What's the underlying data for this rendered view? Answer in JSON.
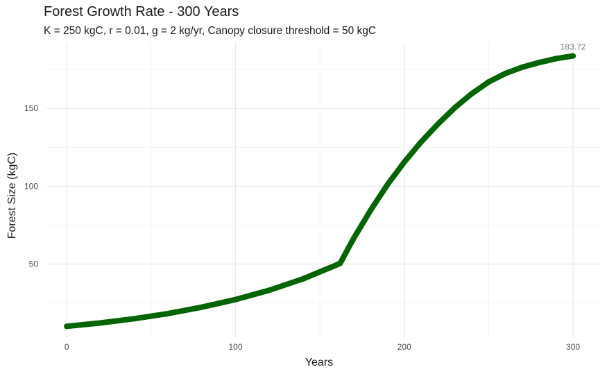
{
  "chart_data": {
    "type": "line",
    "title": "Forest Growth Rate - 300 Years",
    "subtitle": "K = 250 kgC, r = 0.01, g = 2 kg/yr, Canopy closure threshold = 50 kgC",
    "xlabel": "Years",
    "ylabel": "Forest Size (kgC)",
    "xlim": [
      -12,
      316
    ],
    "ylim": [
      3,
      192
    ],
    "x_ticks": [
      0,
      100,
      200,
      300
    ],
    "y_ticks": [
      50,
      100,
      150
    ],
    "grid": true,
    "line_color": "#006400",
    "series": [
      {
        "x": [
          0,
          20,
          40,
          60,
          80,
          100,
          120,
          140,
          160,
          162,
          170,
          180,
          190,
          200,
          210,
          220,
          230,
          240,
          250,
          260,
          270,
          280,
          290,
          300
        ],
        "values": [
          10.0,
          12.2,
          14.9,
          18.2,
          22.3,
          27.2,
          33.2,
          40.5,
          49.5,
          50.5,
          66.5,
          84.5,
          101.0,
          115.5,
          128.5,
          140.0,
          150.5,
          159.5,
          167.0,
          172.5,
          176.5,
          179.5,
          182.0,
          183.72
        ]
      }
    ],
    "end_label": "183.72"
  }
}
